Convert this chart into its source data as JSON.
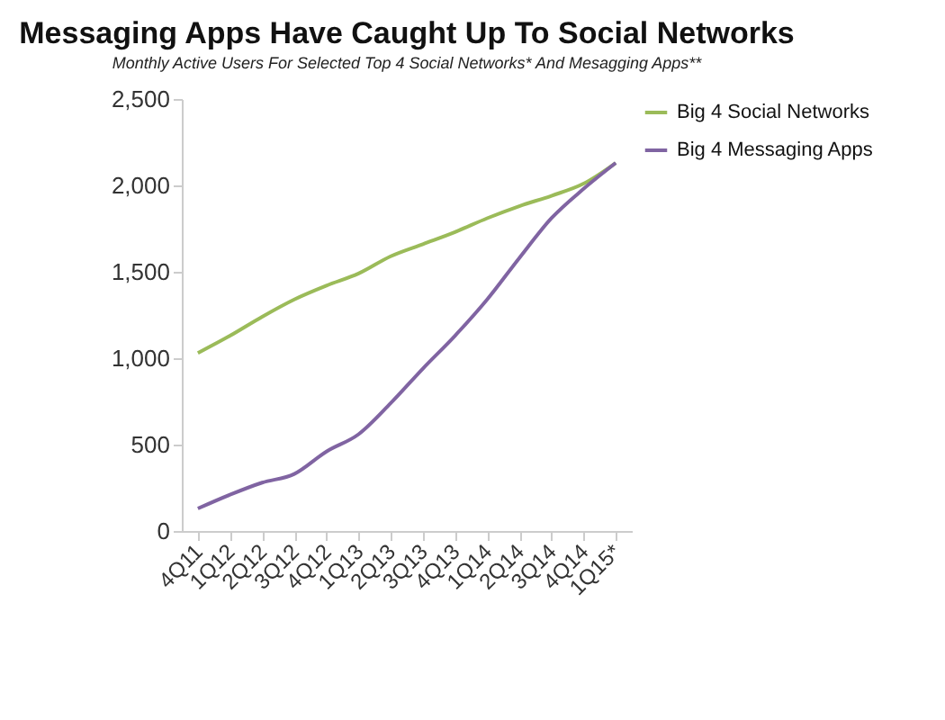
{
  "chart_data": {
    "type": "line",
    "title": "Messaging Apps Have Caught Up To Social Networks",
    "subtitle": "Monthly Active Users For Selected Top 4 Social Networks* And Mesagging Apps**",
    "categories": [
      "4Q11",
      "1Q12",
      "2Q12",
      "3Q12",
      "4Q12",
      "1Q13",
      "2Q13",
      "3Q13",
      "4Q13",
      "1Q14",
      "2Q14",
      "3Q14",
      "4Q14",
      "1Q15*"
    ],
    "series": [
      {
        "name": "Big 4 Social Networks",
        "color": "#9bbb59",
        "values": [
          1030,
          1130,
          1240,
          1340,
          1420,
          1490,
          1590,
          1660,
          1730,
          1810,
          1880,
          1940,
          2010,
          2130
        ]
      },
      {
        "name": "Big 4 Messaging Apps",
        "color": "#8064a2",
        "values": [
          130,
          210,
          280,
          330,
          460,
          560,
          740,
          940,
          1130,
          1340,
          1580,
          1810,
          1980,
          2130
        ]
      }
    ],
    "ylim": [
      0,
      2500
    ],
    "yticks": [
      {
        "value": 0,
        "label": "0"
      },
      {
        "value": 500,
        "label": "500"
      },
      {
        "value": 1000,
        "label": "1,000"
      },
      {
        "value": 1500,
        "label": "1,500"
      },
      {
        "value": 2000,
        "label": "2,000"
      },
      {
        "value": 2500,
        "label": "2,500"
      }
    ],
    "grid": false,
    "legend": "right",
    "marker": "none",
    "line_style": "solid"
  }
}
